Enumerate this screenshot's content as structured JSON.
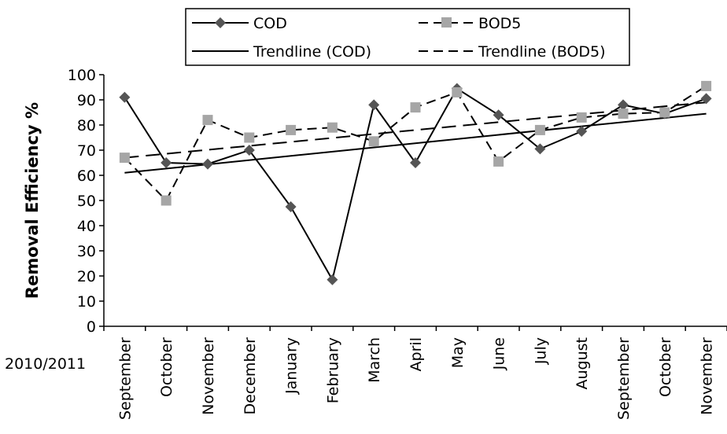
{
  "chart_data": {
    "type": "line",
    "xlabel": "2010/2011",
    "ylabel": "Removal Efficiency %",
    "ylim": [
      0,
      100
    ],
    "yticks": [
      0,
      10,
      20,
      30,
      40,
      50,
      60,
      70,
      80,
      90,
      100
    ],
    "categories": [
      "September",
      "October",
      "November",
      "December",
      "January",
      "February",
      "March",
      "April",
      "May",
      "June",
      "July",
      "August",
      "September",
      "October",
      "November"
    ],
    "series": [
      {
        "name": "COD",
        "values": [
          91,
          65,
          64.5,
          70,
          47.5,
          18.5,
          88,
          65,
          94.5,
          84,
          70.5,
          77.5,
          88,
          84.5,
          90.5
        ],
        "color": "#000000",
        "marker_color": "#555555",
        "marker": "diamond",
        "line": "solid"
      },
      {
        "name": "BOD5",
        "values": [
          67,
          50,
          82,
          75,
          78,
          79,
          73.5,
          87,
          93,
          65.5,
          78,
          83,
          84.5,
          85,
          95.5
        ],
        "color": "#000000",
        "marker_color": "#a6a6a6",
        "marker": "square",
        "line": "dashed"
      }
    ],
    "trendlines": [
      {
        "name": "Trendline (COD)",
        "start": 61,
        "end": 84.5,
        "line": "solid"
      },
      {
        "name": "Trendline (BOD5)",
        "start": 67,
        "end": 89,
        "line": "dashed"
      }
    ],
    "legend_position": "top"
  }
}
